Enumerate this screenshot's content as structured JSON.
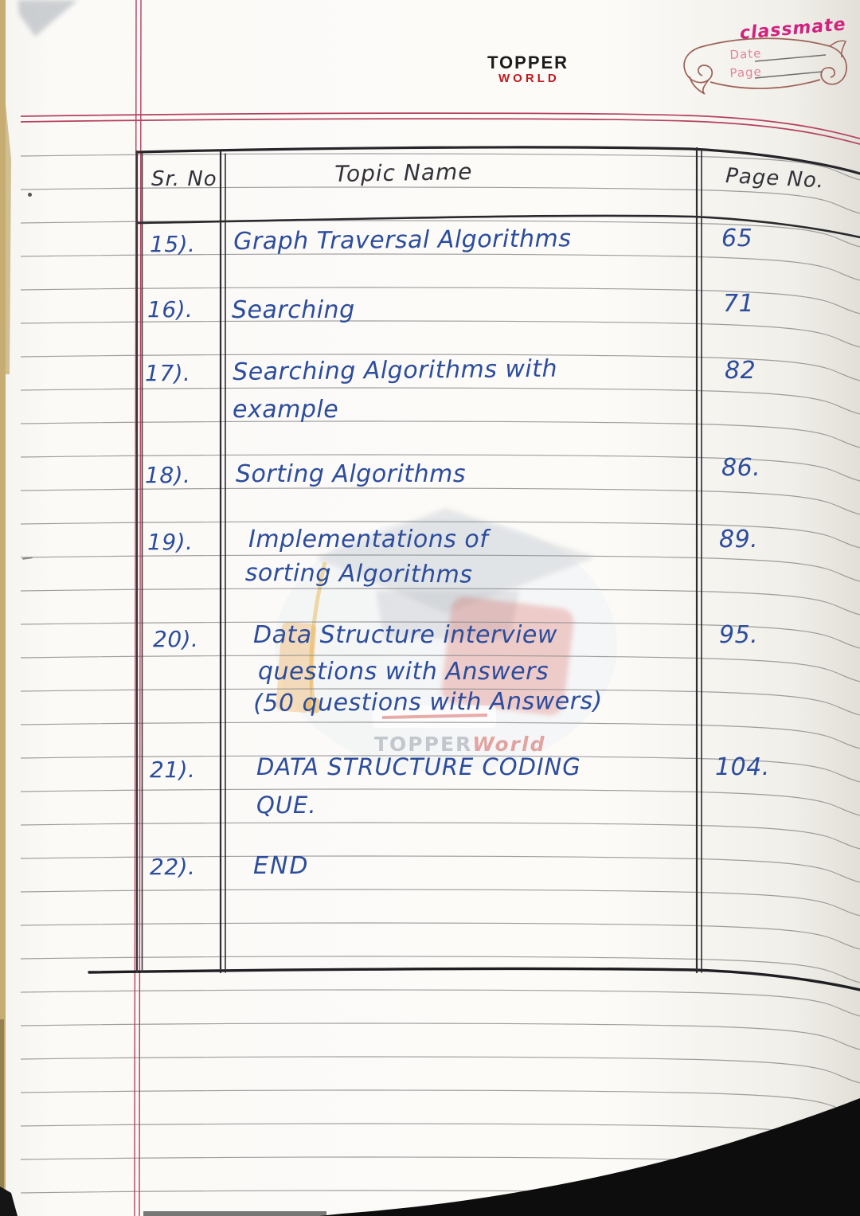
{
  "page": {
    "brand_logo": {
      "line1": "TOPPER",
      "line2": "WORLD"
    },
    "notebook_header": {
      "brand": "classmate",
      "date_label": "Date",
      "page_label": "Page"
    },
    "watermark": {
      "part1": "TOPPER",
      "part2": "World"
    },
    "toc_table": {
      "headers": {
        "sr": "Sr. No",
        "topic": "Topic Name",
        "page": "Page No."
      },
      "rows": [
        {
          "sr": "15).",
          "topic_lines": [
            "Graph Traversal Algorithms"
          ],
          "page": "65"
        },
        {
          "sr": "16).",
          "topic_lines": [
            "Searching"
          ],
          "page": "71"
        },
        {
          "sr": "17).",
          "topic_lines": [
            "Searching Algorithms with",
            "example"
          ],
          "page": "82"
        },
        {
          "sr": "18).",
          "topic_lines": [
            "Sorting Algorithms"
          ],
          "page": "86."
        },
        {
          "sr": "19).",
          "topic_lines": [
            "Implementations of",
            "sorting Algorithms"
          ],
          "page": "89."
        },
        {
          "sr": "20).",
          "topic_lines": [
            "Data Structure interview",
            "questions with Answers",
            "(50 questions with Answers)"
          ],
          "page": "95."
        },
        {
          "sr": "21).",
          "topic_lines": [
            "DATA STRUCTURE CODING",
            "QUE."
          ],
          "page": "104."
        },
        {
          "sr": "22).",
          "topic_lines": [
            "END"
          ],
          "page": ""
        }
      ]
    },
    "ink_colors": {
      "blue": "#2c4c9c",
      "dark": "#32323a",
      "margin_red": "#b5405e",
      "brand_red": "#c0181c",
      "classmate_pink": "#d1227f"
    }
  }
}
